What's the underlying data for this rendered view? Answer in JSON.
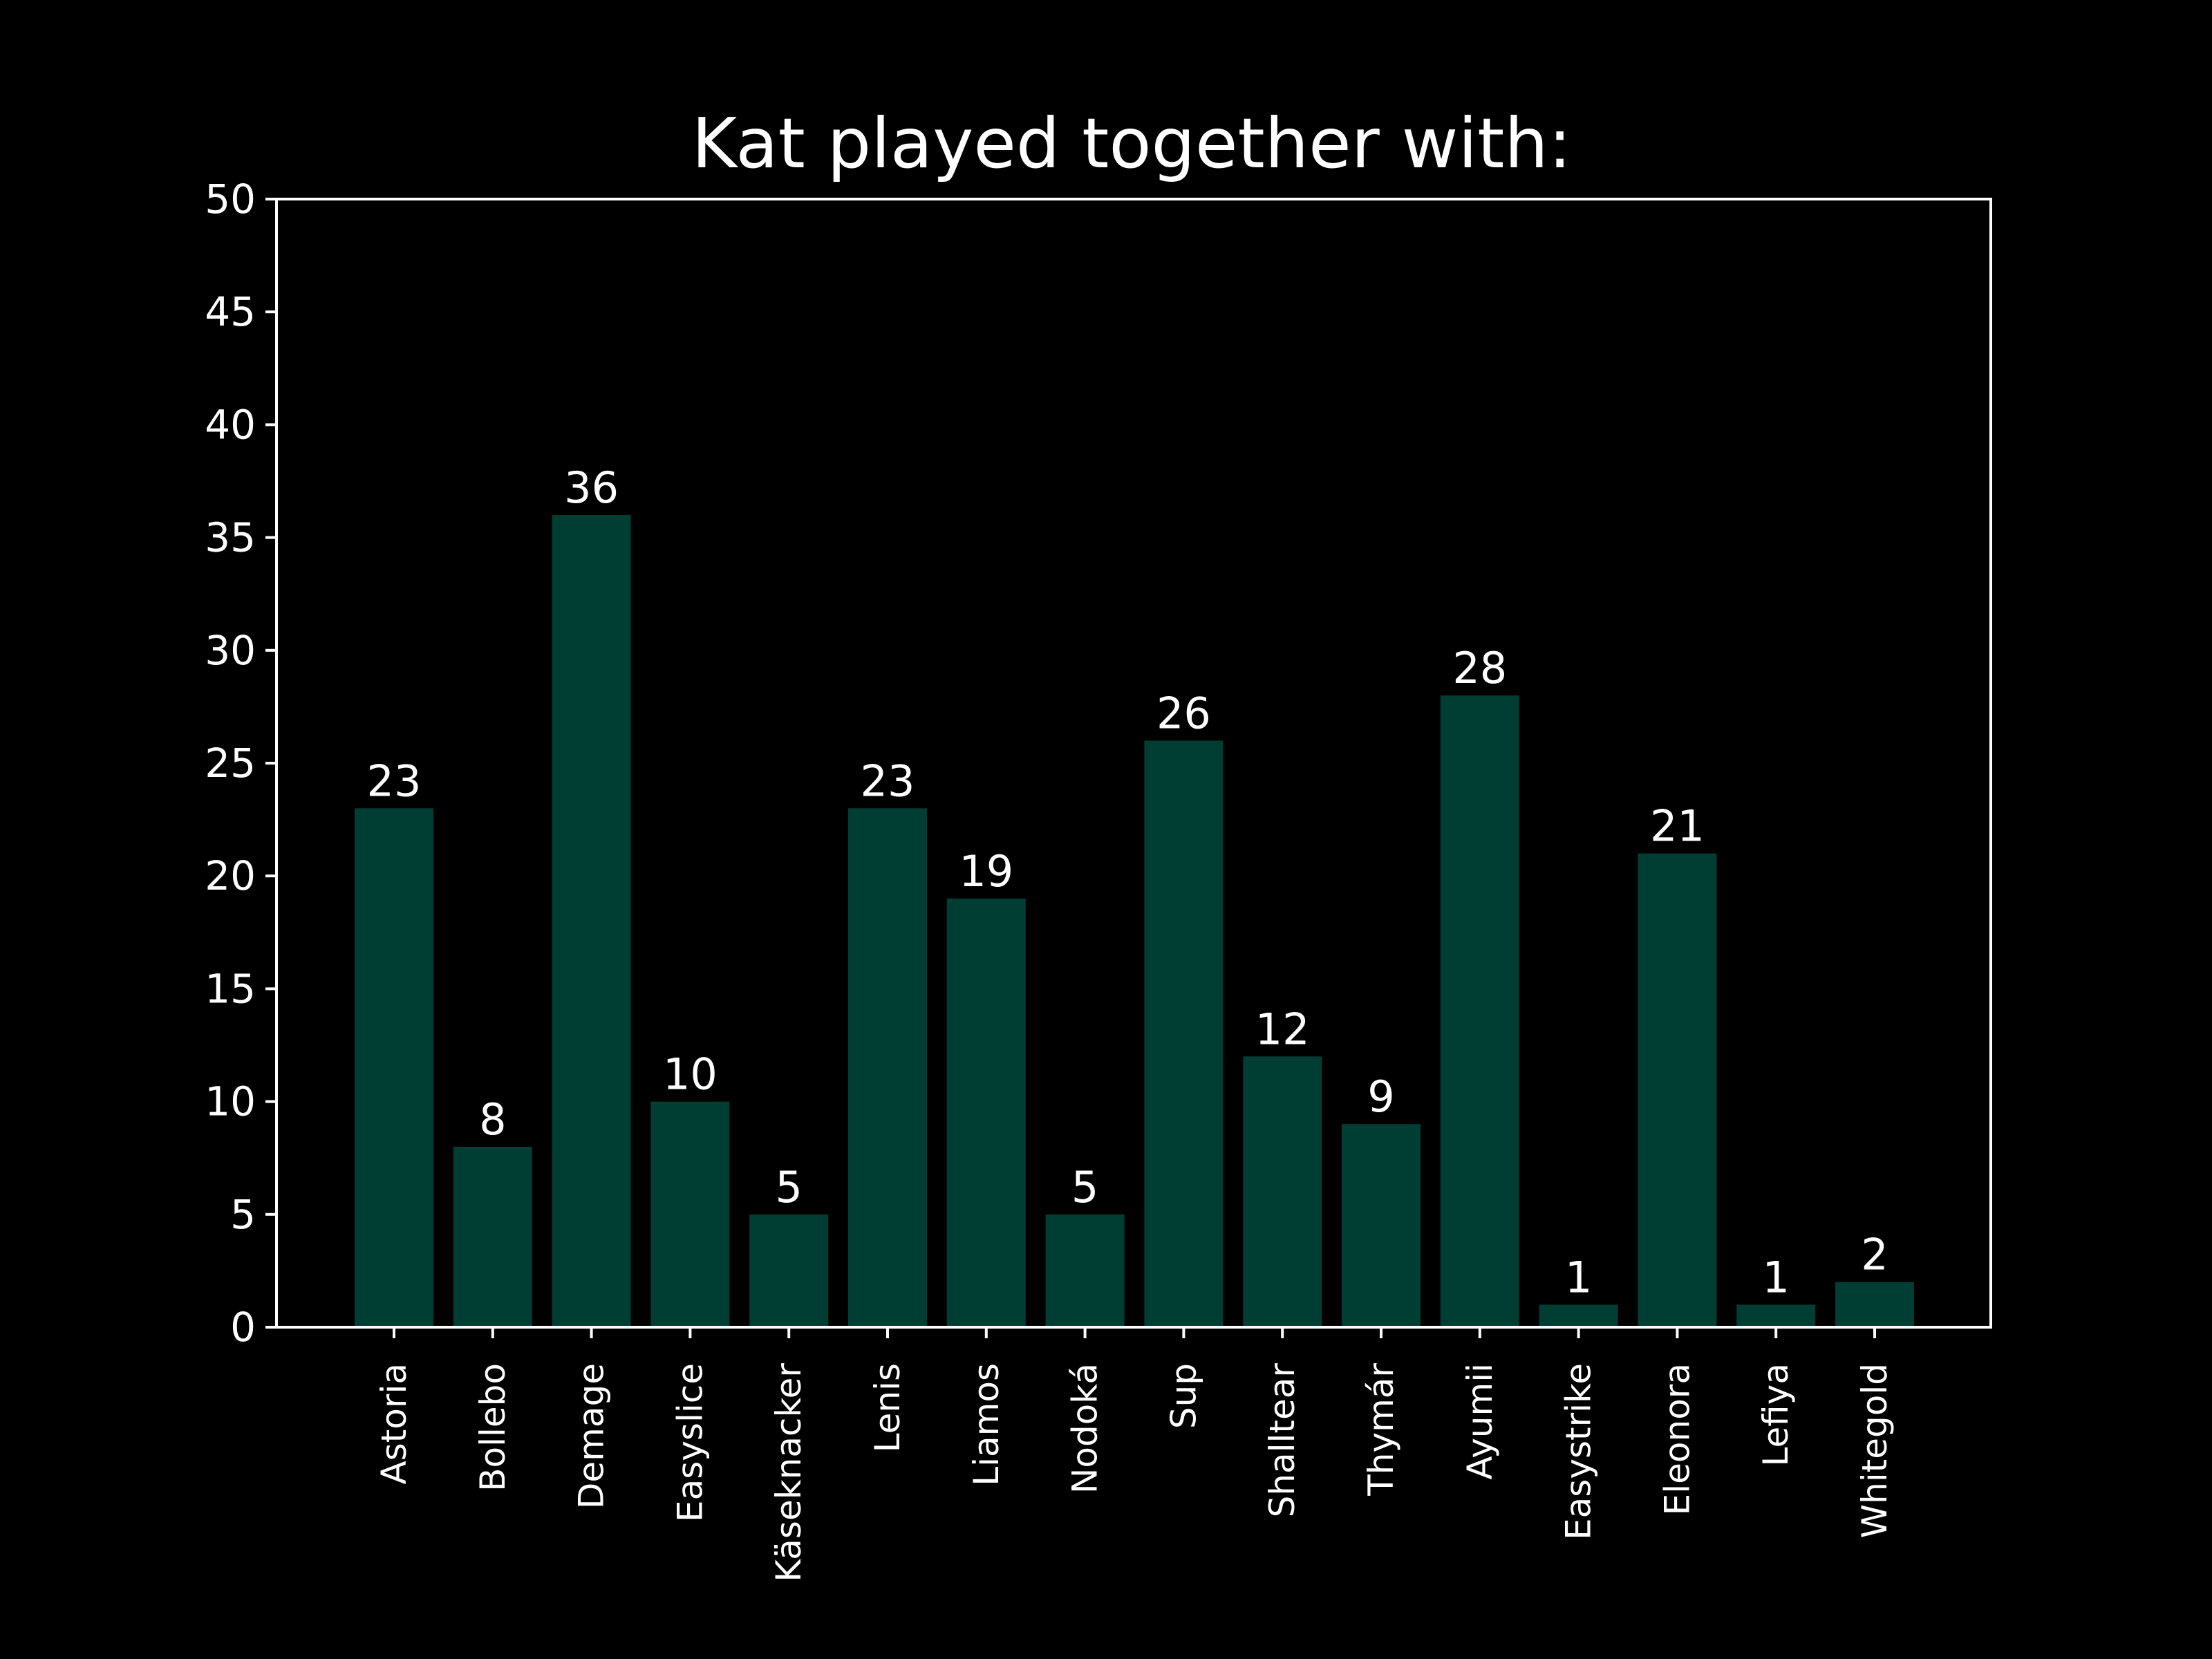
{
  "chart_data": {
    "type": "bar",
    "title": "Kat played together with:",
    "xlabel": "",
    "ylabel": "",
    "categories": [
      "Astoria",
      "Bollebo",
      "Demage",
      "Easyslice",
      "Käseknacker",
      "Lenis",
      "Liamos",
      "Nodoká",
      "Sup",
      "Shalltear",
      "Thymár",
      "Ayumii",
      "Easystrike",
      "Eleonora",
      "Lefiya",
      "Whitegold"
    ],
    "values": [
      23,
      8,
      36,
      10,
      5,
      23,
      19,
      5,
      26,
      12,
      9,
      28,
      1,
      21,
      1,
      2
    ],
    "data_labels": [
      "23",
      "8",
      "36",
      "10",
      "5",
      "23",
      "19",
      "5",
      "26",
      "12",
      "9",
      "28",
      "1",
      "21",
      "1",
      "2"
    ],
    "ylim": [
      0,
      50
    ],
    "yticks": [
      0,
      5,
      10,
      15,
      20,
      25,
      30,
      35,
      40,
      45,
      50
    ],
    "ytick_labels": [
      "0",
      "5",
      "10",
      "15",
      "20",
      "25",
      "30",
      "35",
      "40",
      "45",
      "50"
    ],
    "grid": false,
    "legend": "none",
    "bar_color": "#003d33",
    "background_color": "#000000",
    "text_color": "#ffffff"
  }
}
